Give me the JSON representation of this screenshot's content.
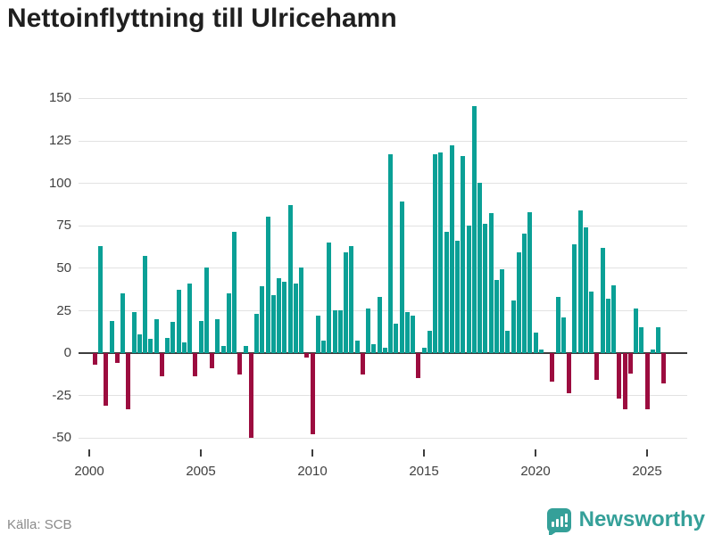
{
  "title": "Nettoinflyttning till Ulricehamn",
  "source": "Källa: SCB",
  "logo": {
    "brand": "Newsworthy",
    "icon": "newsworthy-speech-bubble-barchart-icon"
  },
  "colors": {
    "positive_bar": "#0aa096",
    "negative_bar": "#9c0c3f",
    "title_text": "#1f1f1f",
    "grid": "#e2e2e2",
    "zero_line": "#3d3d3d",
    "axis_text": "#404040",
    "source_text": "#8a8a8a",
    "brand_teal": "#35a099",
    "background": "#ffffff"
  },
  "chart_data": {
    "type": "bar",
    "title": "Nettoinflyttning till Ulricehamn",
    "frequency": "quarterly",
    "start_period": "2000 Q1",
    "end_period": "2025 Q3",
    "ylim": [
      -50,
      150
    ],
    "grid": true,
    "y_tick_labels": [
      150,
      125,
      100,
      75,
      50,
      25,
      0,
      -25,
      -50
    ],
    "x_tick_labels": [
      "2000",
      "2005",
      "2010",
      "2015",
      "2020",
      "2025"
    ],
    "values": [
      -7,
      63,
      -31,
      19,
      -6,
      35,
      -33,
      24,
      11,
      57,
      8,
      20,
      -14,
      9,
      18,
      37,
      6,
      41,
      -14,
      19,
      50,
      -9,
      20,
      4,
      35,
      71,
      -13,
      4,
      -50,
      23,
      39,
      80,
      34,
      44,
      42,
      87,
      41,
      50,
      -3,
      -48,
      22,
      7,
      65,
      25,
      25,
      59,
      63,
      7,
      -13,
      26,
      5,
      33,
      3,
      117,
      17,
      89,
      24,
      22,
      -15,
      3,
      13,
      117,
      118,
      71,
      122,
      66,
      116,
      75,
      145,
      100,
      76,
      82,
      43,
      49,
      13,
      31,
      59,
      70,
      83,
      12,
      2,
      0,
      -17,
      33,
      21,
      -24,
      64,
      84,
      74,
      36,
      -16,
      62,
      32,
      40,
      -27,
      -33,
      -12,
      26,
      15,
      -33,
      2,
      15,
      -18
    ]
  }
}
